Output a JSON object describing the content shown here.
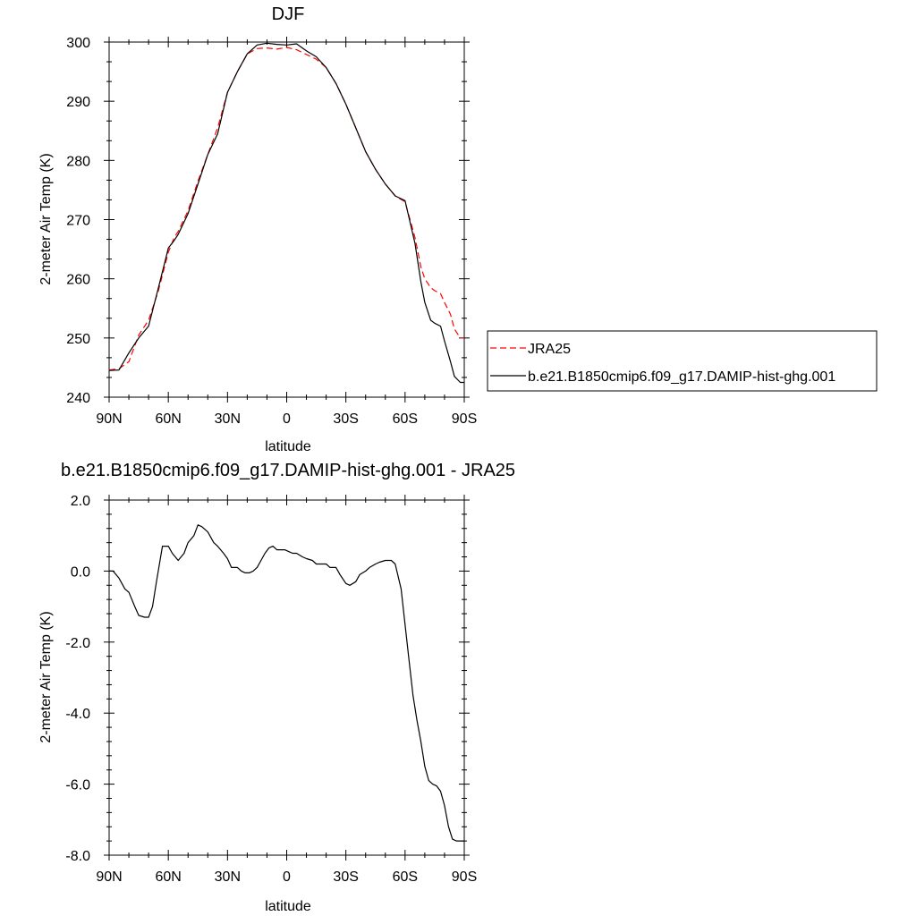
{
  "chart_data": [
    {
      "type": "line",
      "title": "DJF",
      "xlabel": "latitude",
      "ylabel": "2-meter Air Temp (K)",
      "xticks": [
        "90N",
        "60N",
        "30N",
        "0",
        "30S",
        "60S",
        "90S"
      ],
      "xtick_values": [
        90,
        60,
        30,
        0,
        -30,
        -60,
        -90
      ],
      "xlim": [
        90,
        -90
      ],
      "yticks": [
        "240",
        "250",
        "260",
        "270",
        "280",
        "290",
        "300"
      ],
      "ytick_values": [
        240,
        250,
        260,
        270,
        280,
        290,
        300
      ],
      "ylim": [
        240,
        300
      ],
      "legend_position": "right",
      "series": [
        {
          "name": "JRA25",
          "color": "#ff0000",
          "dash": "dashed",
          "x": [
            90,
            85,
            80,
            75,
            70,
            65,
            60,
            57,
            55,
            50,
            45,
            40,
            35,
            30,
            25,
            20,
            15,
            10,
            5,
            0,
            -5,
            -10,
            -15,
            -20,
            -25,
            -30,
            -35,
            -40,
            -45,
            -50,
            -55,
            -60,
            -65,
            -68,
            -70,
            -73,
            -75,
            -78,
            -80,
            -83,
            -85,
            -88,
            -90
          ],
          "values": [
            244.6,
            244.8,
            246.0,
            250.5,
            253.0,
            258.0,
            264.5,
            267.0,
            268.0,
            271.5,
            276.5,
            281.0,
            285.5,
            291.5,
            295.0,
            298.0,
            298.9,
            299.0,
            298.8,
            299.1,
            298.7,
            297.9,
            297.1,
            295.7,
            293.0,
            289.5,
            285.5,
            281.5,
            278.5,
            276.0,
            274.0,
            273.0,
            267.0,
            262.0,
            260.0,
            258.5,
            258.0,
            257.5,
            256.0,
            254.0,
            251.5,
            250.0,
            250.0
          ]
        },
        {
          "name": "b.e21.B1850cmip6.f09_g17.DAMIP-hist-ghg.001",
          "color": "#000000",
          "dash": "solid",
          "x": [
            90,
            85,
            80,
            75,
            70,
            65,
            60,
            57,
            55,
            50,
            45,
            40,
            35,
            30,
            25,
            20,
            15,
            10,
            5,
            0,
            -5,
            -10,
            -15,
            -20,
            -25,
            -30,
            -35,
            -40,
            -45,
            -50,
            -55,
            -60,
            -65,
            -68,
            -70,
            -73,
            -75,
            -78,
            -80,
            -83,
            -85,
            -88,
            -90
          ],
          "values": [
            244.5,
            244.6,
            247.5,
            250.0,
            252.0,
            258.5,
            265.2,
            266.5,
            267.5,
            271.0,
            276.0,
            281.0,
            284.5,
            291.5,
            295.0,
            298.0,
            299.5,
            299.8,
            299.6,
            299.5,
            299.7,
            298.5,
            297.5,
            295.7,
            293.0,
            289.5,
            285.5,
            281.5,
            278.5,
            276.0,
            274.0,
            273.2,
            266.0,
            259.5,
            256.0,
            253.0,
            252.5,
            252.0,
            249.5,
            246.0,
            243.5,
            242.5,
            242.5
          ]
        }
      ]
    },
    {
      "type": "line",
      "title": "b.e21.B1850cmip6.f09_g17.DAMIP-hist-ghg.001 - JRA25",
      "xlabel": "latitude",
      "ylabel": "2-meter Air Temp (K)",
      "xticks": [
        "90N",
        "60N",
        "30N",
        "0",
        "30S",
        "60S",
        "90S"
      ],
      "xtick_values": [
        90,
        60,
        30,
        0,
        -30,
        -60,
        -90
      ],
      "xlim": [
        90,
        -90
      ],
      "yticks": [
        "-8.0",
        "-6.0",
        "-4.0",
        "-2.0",
        "0.0",
        "2.0"
      ],
      "ytick_values": [
        -8,
        -6,
        -4,
        -2,
        0,
        2
      ],
      "ylim": [
        -8,
        2
      ],
      "series": [
        {
          "color": "#000000",
          "dash": "solid",
          "x": [
            90,
            88,
            85,
            82,
            80,
            77,
            75,
            72,
            70,
            68,
            66,
            63,
            60,
            58,
            55,
            52,
            50,
            47,
            45,
            43,
            40,
            37,
            35,
            32,
            30,
            28,
            25,
            23,
            21,
            19,
            17,
            15,
            13,
            11,
            9,
            7,
            5,
            3,
            1,
            -1,
            -3,
            -5,
            -8,
            -10,
            -13,
            -15,
            -17,
            -20,
            -22,
            -25,
            -27,
            -30,
            -32,
            -35,
            -37,
            -40,
            -42,
            -45,
            -47,
            -50,
            -53,
            -55,
            -58,
            -60,
            -62,
            -64,
            -66,
            -68,
            -70,
            -72,
            -74,
            -76,
            -78,
            -80,
            -82,
            -84,
            -86,
            -88,
            -90
          ],
          "values": [
            0.0,
            0.0,
            -0.2,
            -0.5,
            -0.6,
            -1.0,
            -1.25,
            -1.3,
            -1.3,
            -1.0,
            -0.3,
            0.7,
            0.7,
            0.5,
            0.3,
            0.5,
            0.8,
            1.0,
            1.3,
            1.25,
            1.1,
            0.8,
            0.7,
            0.5,
            0.35,
            0.1,
            0.1,
            0.0,
            -0.05,
            -0.05,
            0.0,
            0.1,
            0.3,
            0.5,
            0.65,
            0.7,
            0.6,
            0.6,
            0.6,
            0.55,
            0.5,
            0.5,
            0.4,
            0.35,
            0.3,
            0.2,
            0.2,
            0.2,
            0.1,
            0.1,
            -0.1,
            -0.35,
            -0.4,
            -0.3,
            -0.1,
            0.0,
            0.1,
            0.2,
            0.25,
            0.3,
            0.3,
            0.2,
            -0.5,
            -1.5,
            -2.5,
            -3.5,
            -4.2,
            -4.8,
            -5.5,
            -5.9,
            -6.0,
            -6.05,
            -6.2,
            -6.6,
            -7.2,
            -7.55,
            -7.6,
            -7.6,
            -7.6
          ]
        }
      ]
    }
  ]
}
